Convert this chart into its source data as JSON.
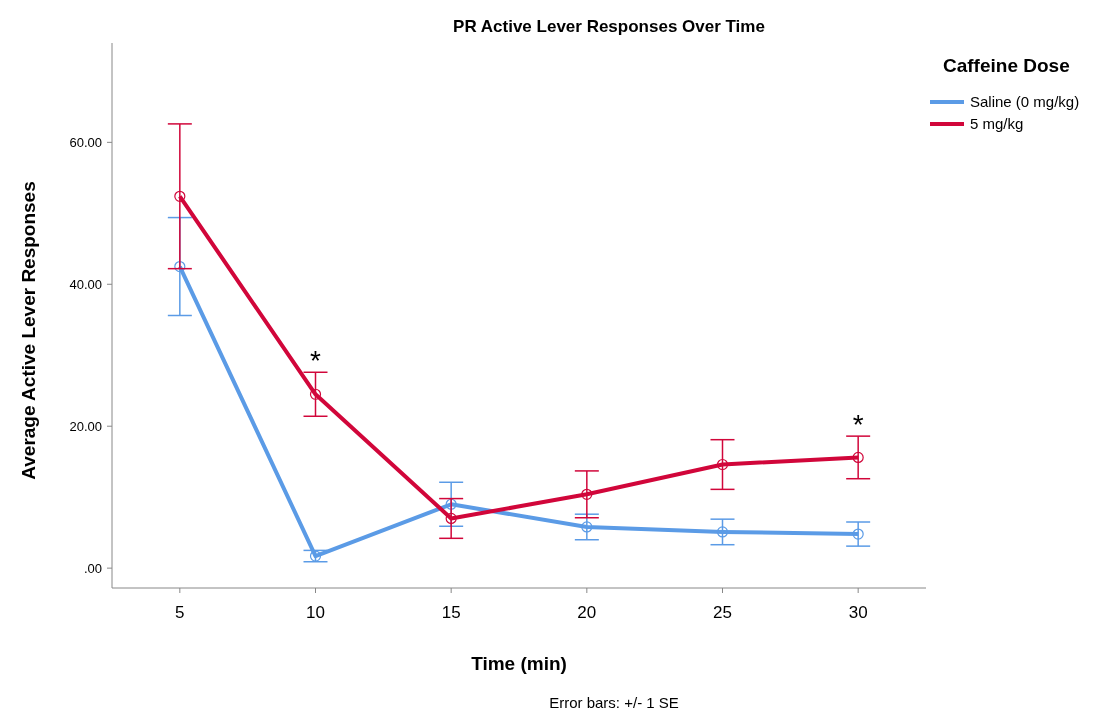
{
  "chart_data": {
    "type": "line",
    "title": "PR Active Lever Responses Over Time",
    "xlabel": "Time (min)",
    "ylabel": "Average Active Lever Responses",
    "legend_title": "Caffeine Dose",
    "legend": "right",
    "marker": "circle",
    "line_style": "solid",
    "grid": false,
    "categories": [
      "5",
      "10",
      "15",
      "20",
      "25",
      "30"
    ],
    "series": [
      {
        "name": "Saline (0 mg/kg)",
        "color": "#5b9be6",
        "values": [
          42.5,
          1.7,
          9.0,
          5.8,
          5.1,
          4.8
        ],
        "errors": [
          6.9,
          0.8,
          3.1,
          1.8,
          1.8,
          1.7
        ]
      },
      {
        "name": "5 mg/kg",
        "color": "#d1063a",
        "values": [
          52.4,
          24.5,
          7.0,
          10.4,
          14.6,
          15.6
        ],
        "errors": [
          10.2,
          3.1,
          2.8,
          3.3,
          3.5,
          3.0
        ]
      }
    ],
    "ylim": [
      -2.8,
      74
    ],
    "yticks": [
      {
        "value": 0,
        "label": ".00"
      },
      {
        "value": 20,
        "label": "20.00"
      },
      {
        "value": 40,
        "label": "40.00"
      },
      {
        "value": 60,
        "label": "60.00"
      }
    ],
    "annotations": [
      {
        "text": "*",
        "x": "10",
        "y": 27.6
      },
      {
        "text": "*",
        "x": "30",
        "y": 18.6
      },
      "Error bars: +/- 1 SE"
    ]
  }
}
